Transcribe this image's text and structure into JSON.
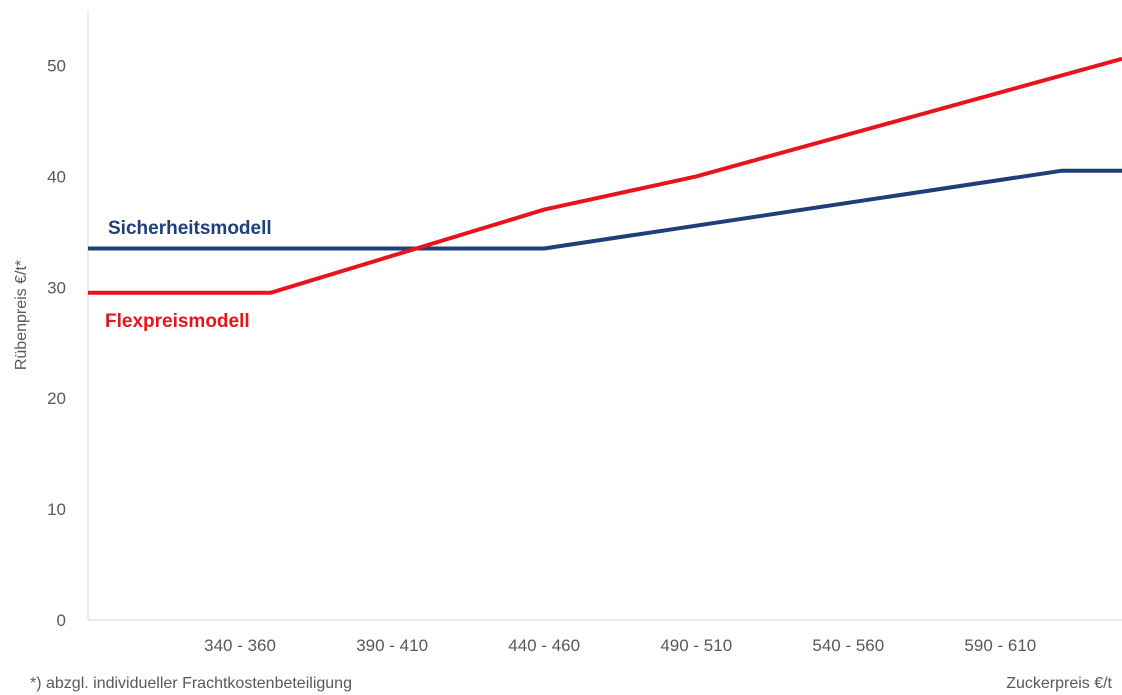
{
  "chart_data": {
    "type": "line",
    "ylabel": "Rübenpreis €/t*",
    "xlabel": "Zuckerpreis €/t",
    "footnote": "*) abzgl. individueller Frachtkostenbeteiligung",
    "ylim": [
      0,
      55
    ],
    "yticks": [
      0,
      10,
      20,
      30,
      40,
      50
    ],
    "xlim": [
      300,
      640
    ],
    "categories": [
      "340 - 360",
      "390 - 410",
      "440 - 460",
      "490 - 510",
      "540 - 560",
      "590 - 610"
    ],
    "category_centers": [
      350,
      400,
      450,
      500,
      550,
      600
    ],
    "grid": false,
    "series": [
      {
        "name": "Sicherheitsmodell",
        "color": "#1f3f7a",
        "points": [
          [
            300,
            33.5
          ],
          [
            450,
            33.5
          ],
          [
            620,
            40.5
          ],
          [
            640,
            40.5
          ]
        ]
      },
      {
        "name": "Flexpreismodell",
        "color": "#e8141c",
        "points": [
          [
            300,
            29.5
          ],
          [
            360,
            29.5
          ],
          [
            450,
            37.0
          ],
          [
            500,
            40.0
          ],
          [
            640,
            50.6
          ]
        ]
      }
    ]
  }
}
